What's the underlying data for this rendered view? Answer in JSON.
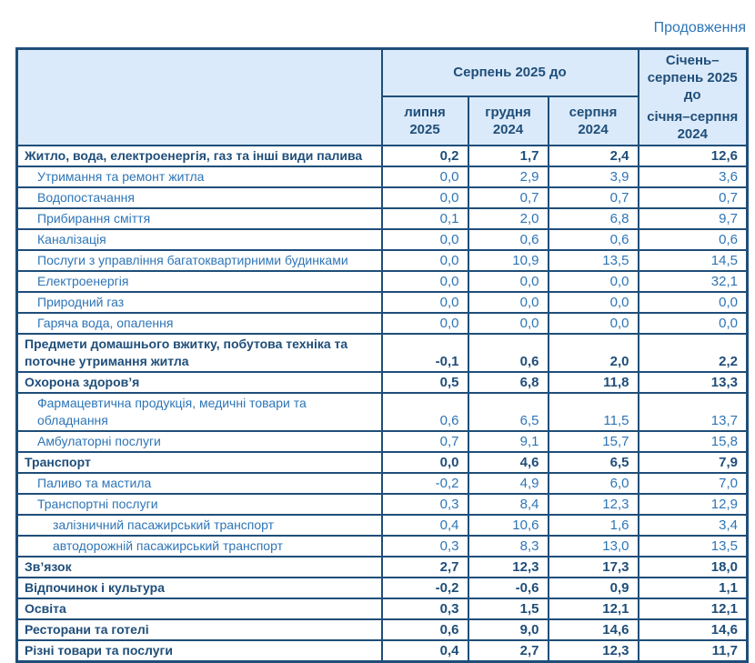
{
  "page": {
    "continuation_label": "Продовження"
  },
  "colors": {
    "border": "#1f4e79",
    "header_bg": "#dbeafa",
    "text_bold": "#1f4e79",
    "text_regular": "#2e75b6",
    "page_bg": "#ffffff"
  },
  "table": {
    "header": {
      "corner_label": "",
      "group_label": "Серпень 2025 до",
      "columns": [
        {
          "month": "липня",
          "year": "2025"
        },
        {
          "month": "грудня",
          "year": "2024"
        },
        {
          "month": "серпня",
          "year": "2024"
        }
      ],
      "period_top": "Січень–серпень 2025 до",
      "period_bottom": "січня–серпня 2024"
    },
    "rows": [
      {
        "label": "Житло, вода, електроенергія, газ та інші види палива",
        "level": 0,
        "bold": true,
        "values": [
          "0,2",
          "1,7",
          "2,4",
          "12,6"
        ]
      },
      {
        "label": "Утримання та ремонт житла",
        "level": 1,
        "bold": false,
        "values": [
          "0,0",
          "2,9",
          "3,9",
          "3,6"
        ]
      },
      {
        "label": "Водопостачання",
        "level": 1,
        "bold": false,
        "values": [
          "0,0",
          "0,7",
          "0,7",
          "0,7"
        ]
      },
      {
        "label": "Прибирання сміття",
        "level": 1,
        "bold": false,
        "values": [
          "0,1",
          "2,0",
          "6,8",
          "9,7"
        ]
      },
      {
        "label": "Каналізація",
        "level": 1,
        "bold": false,
        "values": [
          "0,0",
          "0,6",
          "0,6",
          "0,6"
        ]
      },
      {
        "label": "Послуги з управління багатоквартирними будинками",
        "level": 1,
        "bold": false,
        "values": [
          "0,0",
          "10,9",
          "13,5",
          "14,5"
        ]
      },
      {
        "label": "Електроенергія",
        "level": 1,
        "bold": false,
        "values": [
          "0,0",
          "0,0",
          "0,0",
          "32,1"
        ]
      },
      {
        "label": "Природний газ",
        "level": 1,
        "bold": false,
        "values": [
          "0,0",
          "0,0",
          "0,0",
          "0,0"
        ]
      },
      {
        "label": "Гаряча вода, опалення",
        "level": 1,
        "bold": false,
        "values": [
          "0,0",
          "0,0",
          "0,0",
          "0,0"
        ]
      },
      {
        "label": "Предмети домашнього вжитку, побутова техніка та\nпоточне утримання житла",
        "level": 0,
        "bold": true,
        "values": [
          "-0,1",
          "0,6",
          "2,0",
          "2,2"
        ]
      },
      {
        "label": "Охорона здоров’я",
        "level": 0,
        "bold": true,
        "values": [
          "0,5",
          "6,8",
          "11,8",
          "13,3"
        ]
      },
      {
        "label": "Фармацевтична продукція, медичні товари та\nобладнання",
        "level": 1,
        "bold": false,
        "values": [
          "0,6",
          "6,5",
          "11,5",
          "13,7"
        ]
      },
      {
        "label": "Амбулаторні послуги",
        "level": 1,
        "bold": false,
        "values": [
          "0,7",
          "9,1",
          "15,7",
          "15,8"
        ]
      },
      {
        "label": "Транспорт",
        "level": 0,
        "bold": true,
        "values": [
          "0,0",
          "4,6",
          "6,5",
          "7,9"
        ]
      },
      {
        "label": "Паливо та мастила",
        "level": 1,
        "bold": false,
        "values": [
          "-0,2",
          "4,9",
          "6,0",
          "7,0"
        ]
      },
      {
        "label": "Транспортні послуги",
        "level": 1,
        "bold": false,
        "values": [
          "0,3",
          "8,4",
          "12,3",
          "12,9"
        ]
      },
      {
        "label": "залізничний пасажирський транспорт",
        "level": 2,
        "bold": false,
        "values": [
          "0,4",
          "10,6",
          "1,6",
          "3,4"
        ]
      },
      {
        "label": "автодорожній пасажирський транспорт",
        "level": 2,
        "bold": false,
        "values": [
          "0,3",
          "8,3",
          "13,0",
          "13,5"
        ]
      },
      {
        "label": "Зв’язок",
        "level": 0,
        "bold": true,
        "values": [
          "2,7",
          "12,3",
          "17,3",
          "18,0"
        ]
      },
      {
        "label": "Відпочинок і культура",
        "level": 0,
        "bold": true,
        "values": [
          "-0,2",
          "-0,6",
          "0,9",
          "1,1"
        ]
      },
      {
        "label": "Освіта",
        "level": 0,
        "bold": true,
        "values": [
          "0,3",
          "1,5",
          "12,1",
          "12,1"
        ]
      },
      {
        "label": "Ресторани та готелі",
        "level": 0,
        "bold": true,
        "values": [
          "0,6",
          "9,0",
          "14,6",
          "14,6"
        ]
      },
      {
        "label": "Різні товари та послуги",
        "level": 0,
        "bold": true,
        "values": [
          "0,4",
          "2,7",
          "12,3",
          "11,7"
        ]
      }
    ]
  }
}
